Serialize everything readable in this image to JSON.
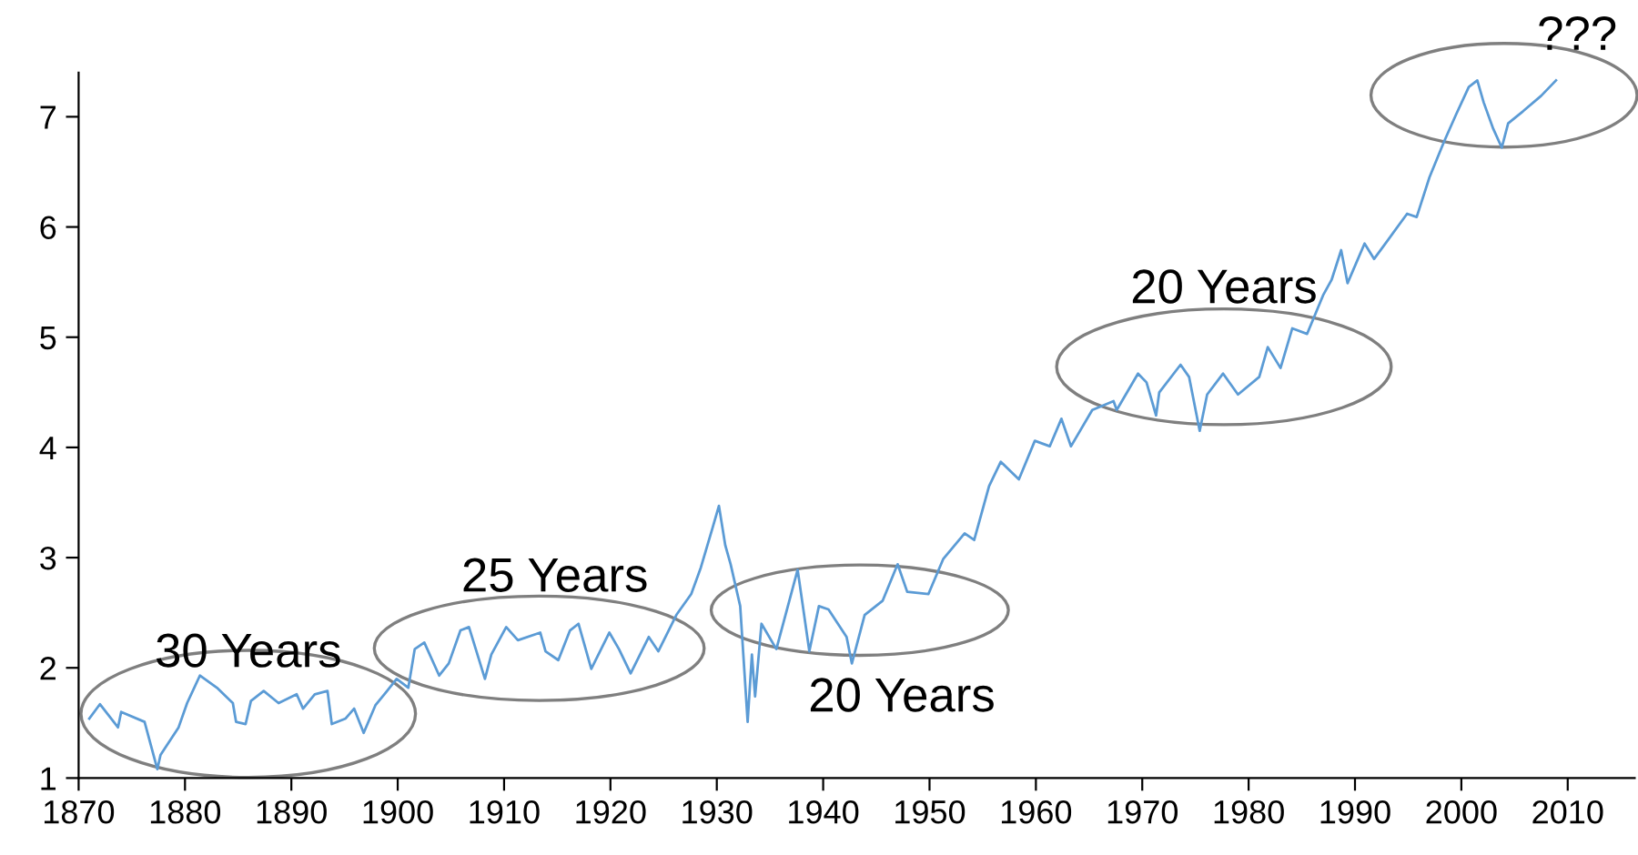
{
  "chart_data": {
    "type": "line",
    "x": [
      1871,
      1872,
      1873.7,
      1874,
      1876.2,
      1877.4,
      1877.7,
      1879.4,
      1880.2,
      1881.4,
      1883,
      1884.5,
      1884.8,
      1885.7,
      1886.2,
      1887.4,
      1888.8,
      1890.5,
      1891.1,
      1892.2,
      1893.4,
      1893.8,
      1895.1,
      1895.9,
      1896.8,
      1897.9,
      1899,
      1899.9,
      1901,
      1901.6,
      1902.5,
      1903.9,
      1904.8,
      1905.9,
      1906.7,
      1908.2,
      1908.8,
      1910.2,
      1911.3,
      1913.4,
      1913.9,
      1915.1,
      1916.2,
      1917,
      1918.2,
      1919.9,
      1920.8,
      1921.9,
      1923.6,
      1924.5,
      1926.2,
      1927.6,
      1928.5,
      1929.6,
      1930.2,
      1930.8,
      1931.3,
      1932.2,
      1932.9,
      1933.3,
      1933.6,
      1934.2,
      1935.6,
      1937.6,
      1938.7,
      1939.6,
      1940.5,
      1942.2,
      1942.7,
      1943.9,
      1945.6,
      1947,
      1947.9,
      1949.9,
      1951.3,
      1953.3,
      1954.2,
      1955.6,
      1956.7,
      1958.4,
      1959.9,
      1961.3,
      1962.4,
      1963.3,
      1965.3,
      1967.3,
      1967.6,
      1969.6,
      1970.4,
      1971.3,
      1971.6,
      1973.6,
      1974.4,
      1975.4,
      1976.1,
      1977.6,
      1979,
      1981,
      1981.8,
      1983,
      1984.1,
      1985.5,
      1987,
      1987.8,
      1988.7,
      1989.3,
      1990.9,
      1991.8,
      1994.9,
      1995.8,
      1997,
      1998.4,
      1999.5,
      2000.7,
      2001.5,
      2002.1,
      2003,
      2003.8,
      2004.4,
      2005.8,
      2007.5,
      2008.9
    ],
    "series": [
      {
        "color": "#5b9bd5",
        "values": [
          1.54,
          1.67,
          1.46,
          1.6,
          1.51,
          1.08,
          1.21,
          1.46,
          1.68,
          1.93,
          1.82,
          1.68,
          1.51,
          1.49,
          1.7,
          1.79,
          1.68,
          1.76,
          1.63,
          1.76,
          1.79,
          1.49,
          1.54,
          1.63,
          1.41,
          1.66,
          1.79,
          1.9,
          1.82,
          2.17,
          2.23,
          1.93,
          2.04,
          2.34,
          2.37,
          1.9,
          2.12,
          2.37,
          2.25,
          2.32,
          2.15,
          2.07,
          2.34,
          2.4,
          1.99,
          2.32,
          2.17,
          1.95,
          2.28,
          2.15,
          2.48,
          2.67,
          2.91,
          3.27,
          3.47,
          3.11,
          2.94,
          2.56,
          1.51,
          2.12,
          1.74,
          2.4,
          2.17,
          2.89,
          2.15,
          2.56,
          2.53,
          2.28,
          2.04,
          2.48,
          2.61,
          2.94,
          2.69,
          2.67,
          2.99,
          3.22,
          3.16,
          3.65,
          3.87,
          3.71,
          4.06,
          4.01,
          4.26,
          4.01,
          4.34,
          4.42,
          4.34,
          4.67,
          4.59,
          4.29,
          4.5,
          4.75,
          4.64,
          4.15,
          4.48,
          4.67,
          4.48,
          4.64,
          4.91,
          4.72,
          5.08,
          5.03,
          5.38,
          5.52,
          5.79,
          5.49,
          5.85,
          5.71,
          6.12,
          6.09,
          6.45,
          6.78,
          7.02,
          7.27,
          7.33,
          7.13,
          6.89,
          6.72,
          6.94,
          7.05,
          7.19,
          7.33
        ]
      }
    ],
    "xlim": [
      1870,
      2016.3
    ],
    "xticks": [
      1870,
      1880,
      1890,
      1900,
      1910,
      1920,
      1930,
      1940,
      1950,
      1960,
      1970,
      1980,
      1990,
      2000,
      2010
    ],
    "ylim": [
      1,
      7.4
    ],
    "yticks": [
      1,
      2,
      3,
      4,
      5,
      6,
      7
    ],
    "grid": false,
    "legend": false,
    "marker": "none",
    "line_style": "solid",
    "annotations": [
      "30 Years",
      "25 Years",
      "20 Years",
      "20 Years",
      "???"
    ]
  }
}
